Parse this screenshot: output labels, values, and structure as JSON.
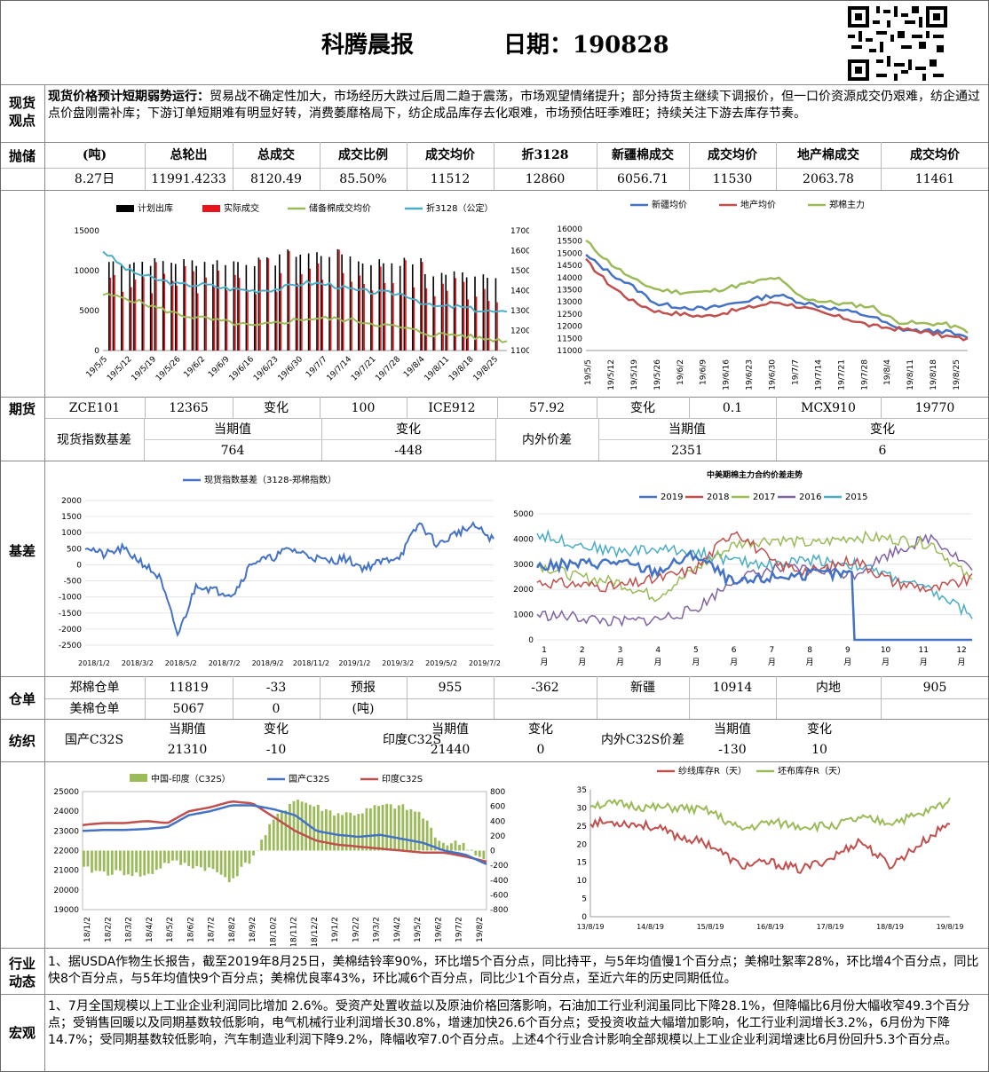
{
  "header": {
    "title": "科腾晨报",
    "date_label": "日期：190828"
  },
  "sections": {
    "spot": [
      "现货",
      "观点"
    ],
    "reserve": "抛储",
    "futures": "期货",
    "basis": "基差",
    "warehouse": "仓单",
    "textile": "纺织",
    "industry": [
      "行业",
      "动态"
    ],
    "macro": "宏观"
  },
  "spot": {
    "bold": "现货价格预计短期弱势运行：",
    "text": "贸易战不确定性加大，市场经历大跌过后周二趋于震荡，市场观望情绪提升；部分持货主继续下调报价，但一口价资源成交仍艰难，纺企通过点价盘刚需补库；下游订单短期难有明显好转，消费萎靡格局下，纺企成品库存去化艰难，市场预估旺季难旺；持续关注下游去库存节奏。"
  },
  "reserve_table": {
    "headers": [
      "(吨)",
      "总轮出",
      "总成交",
      "成交比例",
      "成交均价",
      "折3128",
      "新疆棉成交",
      "成交均价",
      "地产棉成交",
      "成交均价"
    ],
    "row": [
      "8.27日",
      "11991.4233",
      "8120.49",
      "85.50%",
      "11512",
      "12860",
      "6056.71",
      "11530",
      "2063.78",
      "11461"
    ]
  },
  "futures_row": [
    "ZCE101",
    "12365",
    "变化",
    "100",
    "ICE912",
    "57.92",
    "变化",
    "0.1",
    "MCX910",
    "19770"
  ],
  "basis_table": {
    "label1": "现货指数基差",
    "h1": "当期值",
    "h2": "变化",
    "label2": "内外价差",
    "h3": "当期值",
    "h4": "变化",
    "v1": "764",
    "v2": "-448",
    "v3": "2351",
    "v4": "6"
  },
  "warehouse": {
    "r1": [
      "郑棉仓单",
      "11819",
      "-33",
      "预报",
      "955",
      "-362",
      "新疆",
      "10914",
      "内地",
      "905"
    ],
    "r2": [
      "美棉仓单",
      "5067",
      "0",
      "(吨)"
    ]
  },
  "textile": {
    "label1": "国产C32S",
    "h1": "当期值",
    "h2": "变化",
    "v1": "21310",
    "v2": "-10",
    "label2": "印度C32S",
    "h3": "当期值",
    "h4": "变化",
    "v3": "21440",
    "v4": "0",
    "label3": "内外C32S价差",
    "h5": "当期值",
    "h6": "变化",
    "v5": "-130",
    "v6": "10"
  },
  "industry": {
    "text": "1、据USDA作物生长报告，截至2019年8月25日，美棉结铃率90%，环比增5个百分点，同比持平，与5年均值慢1个百分点；美棉吐絮率28%，环比增4个百分点，同比快8个百分点，与5年均值快9个百分点；美棉优良率43%，环比减6个百分点，同比少1个百分点，至近六年的历史同期低位。"
  },
  "macro": {
    "text": "1、7月全国规模以上工业企业利润同比增加 2.6%。受资产处置收益以及原油价格回落影响，石油加工行业利润虽同比下降28.1%，但降幅比6月份大幅收窄49.3个百分点；受销售回暖以及同期基数较低影响，电气机械行业利润增长30.8%，增速加快26.6个百分点；受投资收益大幅增加影响，化工行业利润增长3.2%，6月份为下降14.7%；受同期基数较低影响，汽车制造业利润下降9.2%，降幅收窄7.0个百分点。上述4个行业合计影响全部规模以上工业企业利润增速比6月份回升5.3个百分点。"
  },
  "colors": {
    "black": "#000000",
    "red": "#e8141b",
    "green": "#9bbb59",
    "blue": "#4f81bd",
    "teal": "#4bacc6",
    "blue2": "#4472c4",
    "red2": "#c0504d",
    "purple": "#8064a2",
    "cyan": "#4bacc6"
  },
  "chart_data": [
    {
      "type": "bar",
      "legend": [
        "计划出库",
        "实际成交",
        "储备棉成交均价",
        "折3128（公定）"
      ],
      "x_ticks": [
        "19/5/5",
        "19/5/12",
        "19/5/19",
        "19/5/26",
        "19/6/2",
        "19/6/9",
        "19/6/16",
        "19/6/23",
        "19/6/30",
        "19/7/7",
        "19/7/14",
        "19/7/21",
        "19/7/28",
        "19/8/4",
        "19/8/11",
        "19/8/18",
        "19/8/25"
      ],
      "y_ticks": [
        "15000",
        "10000",
        "5000",
        "0"
      ],
      "y2_ticks": [
        "17000",
        "16000",
        "15000",
        "14000",
        "13000",
        "12000",
        "11000"
      ],
      "ylim": [
        0,
        15000
      ],
      "y2lim": [
        11000,
        17000
      ],
      "series": [
        {
          "name": "储备棉成交均价",
          "values": [
            13800,
            13600,
            13200,
            12800,
            12600,
            12400,
            12200,
            12400,
            12600,
            12600,
            12500,
            12300,
            12100,
            11800,
            11800,
            11600,
            11500
          ]
        },
        {
          "name": "折3128（公定）",
          "values": [
            16000,
            15000,
            14600,
            14300,
            14300,
            14100,
            14000,
            14100,
            14400,
            14300,
            14000,
            13900,
            13800,
            13200,
            13200,
            13000,
            12860
          ]
        }
      ]
    },
    {
      "type": "line",
      "legend": [
        "新疆均价",
        "地产均价",
        "郑棉主力"
      ],
      "x_ticks": [
        "19/5/5",
        "19/5/12",
        "19/5/19",
        "19/5/26",
        "19/6/2",
        "19/6/9",
        "19/6/16",
        "19/6/23",
        "19/6/30",
        "19/7/7",
        "19/7/14",
        "19/7/21",
        "19/7/28",
        "19/8/4",
        "19/8/11",
        "19/8/18",
        "19/8/25"
      ],
      "y_ticks": [
        "16000",
        "15500",
        "15000",
        "14500",
        "14000",
        "13500",
        "13000",
        "12500",
        "12000",
        "11500",
        "11000"
      ],
      "ylim": [
        11000,
        16000
      ],
      "series": [
        {
          "name": "新疆均价",
          "values": [
            14900,
            14200,
            13600,
            12900,
            12800,
            12700,
            12900,
            13100,
            13300,
            13000,
            12800,
            12600,
            12400,
            11900,
            11800,
            11800,
            11500
          ]
        },
        {
          "name": "地产均价",
          "values": [
            14700,
            13700,
            13000,
            12600,
            12500,
            12400,
            12600,
            12800,
            13000,
            12800,
            12500,
            12300,
            12000,
            11900,
            11800,
            11600,
            11461
          ]
        },
        {
          "name": "郑棉主力",
          "values": [
            15500,
            14600,
            13900,
            13500,
            13400,
            13400,
            13600,
            13800,
            14000,
            13200,
            13000,
            12900,
            12800,
            12200,
            12100,
            12100,
            11800
          ]
        }
      ]
    },
    {
      "type": "line",
      "legend": [
        "现货指数基差（3128-郑棉指数）"
      ],
      "x_ticks": [
        "2018/1/2",
        "2018/3/2",
        "2018/5/2",
        "2018/7/2",
        "2018/9/2",
        "2018/11/2",
        "2019/1/2",
        "2019/3/2",
        "2019/5/2",
        "2019/7/2"
      ],
      "y_ticks": [
        "2000",
        "1500",
        "1000",
        "500",
        "0",
        "-500",
        "-1000",
        "-1500",
        "-2000",
        "-2500"
      ],
      "ylim": [
        -2500,
        2000
      ],
      "series": [
        {
          "name": "现货指数基差（3128-郑棉指数）",
          "values": [
            600,
            300,
            500,
            100,
            -400,
            -2200,
            -600,
            -800,
            -900,
            100,
            200,
            500,
            300,
            100,
            200,
            -100,
            100,
            300,
            1300,
            600,
            1000,
            1200,
            764
          ]
        }
      ]
    },
    {
      "type": "line",
      "title": "中美期棉主力合约价差走势",
      "x_ticks": [
        "1月",
        "2月",
        "3月",
        "4月",
        "5月",
        "6月",
        "7月",
        "8月",
        "9月",
        "10月",
        "11月",
        "12月"
      ],
      "y_ticks": [
        "5000",
        "4000",
        "3000",
        "2000",
        "1000",
        "0"
      ],
      "ylim": [
        0,
        5000
      ],
      "series": [
        {
          "name": "2019",
          "values": [
            2900,
            3000,
            3100,
            2700,
            3400,
            2200,
            2500,
            2600,
            2600,
            null,
            null,
            null
          ]
        },
        {
          "name": "2018",
          "values": [
            2300,
            2200,
            2100,
            2400,
            2800,
            4400,
            3000,
            2700,
            3200,
            2300,
            2000,
            2400
          ]
        },
        {
          "name": "2017",
          "values": [
            3000,
            2500,
            2300,
            1700,
            2800,
            3800,
            4000,
            3800,
            4100,
            4000,
            3800,
            2300
          ]
        },
        {
          "name": "2016",
          "values": [
            1000,
            900,
            700,
            800,
            1200,
            2400,
            2800,
            2800,
            2600,
            3500,
            4100,
            2800
          ]
        },
        {
          "name": "2015",
          "values": [
            4200,
            3800,
            3500,
            3600,
            3500,
            3100,
            3000,
            3200,
            3000,
            2500,
            1900,
            1000
          ]
        }
      ]
    },
    {
      "type": "bar",
      "legend": [
        "中国-印度（C32S）",
        "国产C32S",
        "印度C32S"
      ],
      "x_ticks": [
        "18/1/2",
        "18/2/2",
        "18/3/2",
        "18/4/2",
        "18/5/2",
        "18/6/2",
        "18/7/2",
        "18/8/2",
        "18/9/2",
        "18/10/2",
        "18/11/2",
        "18/12/2",
        "19/1/2",
        "19/2/2",
        "19/3/2",
        "19/4/2",
        "19/5/2",
        "19/6/2",
        "19/7/2",
        "19/8/2"
      ],
      "y_ticks": [
        "25000",
        "24000",
        "23000",
        "22000",
        "21000",
        "20000",
        "19000"
      ],
      "ylim": [
        19000,
        25000
      ],
      "y2_ticks": [
        "800",
        "600",
        "400",
        "200",
        "0",
        "-200",
        "-400",
        "-600",
        "-800"
      ],
      "y2lim": [
        -800,
        800
      ],
      "series": [
        {
          "name": "国产C32S",
          "values": [
            23000,
            23050,
            23050,
            23100,
            23200,
            23800,
            24000,
            24300,
            24300,
            24100,
            23800,
            23000,
            22800,
            22700,
            22800,
            22600,
            22400,
            22000,
            21800,
            21310
          ]
        },
        {
          "name": "印度C32S",
          "values": [
            23300,
            23400,
            23400,
            23500,
            23400,
            24000,
            24200,
            24500,
            24400,
            23700,
            23000,
            22500,
            22300,
            22200,
            22100,
            22000,
            21900,
            21900,
            21700,
            21440
          ]
        },
        {
          "name": "中国-印度（C32S）",
          "values": [
            -250,
            -300,
            -300,
            -350,
            -150,
            -200,
            -250,
            -400,
            -100,
            400,
            700,
            600,
            500,
            500,
            600,
            600,
            500,
            100,
            100,
            -130
          ]
        }
      ]
    },
    {
      "type": "line",
      "legend": [
        "纱线库存R（天）",
        "坯布库存R（天）"
      ],
      "x_ticks": [
        "13/8/19",
        "14/8/19",
        "15/8/19",
        "16/8/19",
        "17/8/19",
        "18/8/19",
        "19/8/19"
      ],
      "y_ticks": [
        "35",
        "30",
        "25",
        "20",
        "15",
        "10",
        "5",
        "0"
      ],
      "ylim": [
        0,
        35
      ],
      "series": [
        {
          "name": "纱线库存R（天）",
          "values": [
            26,
            26,
            25,
            22,
            20,
            14,
            15,
            13,
            16,
            21,
            14,
            20,
            26
          ]
        },
        {
          "name": "坯布库存R（天）",
          "values": [
            31,
            31,
            30,
            30,
            29,
            24,
            26,
            25,
            25,
            27,
            26,
            28,
            32
          ]
        }
      ]
    }
  ]
}
